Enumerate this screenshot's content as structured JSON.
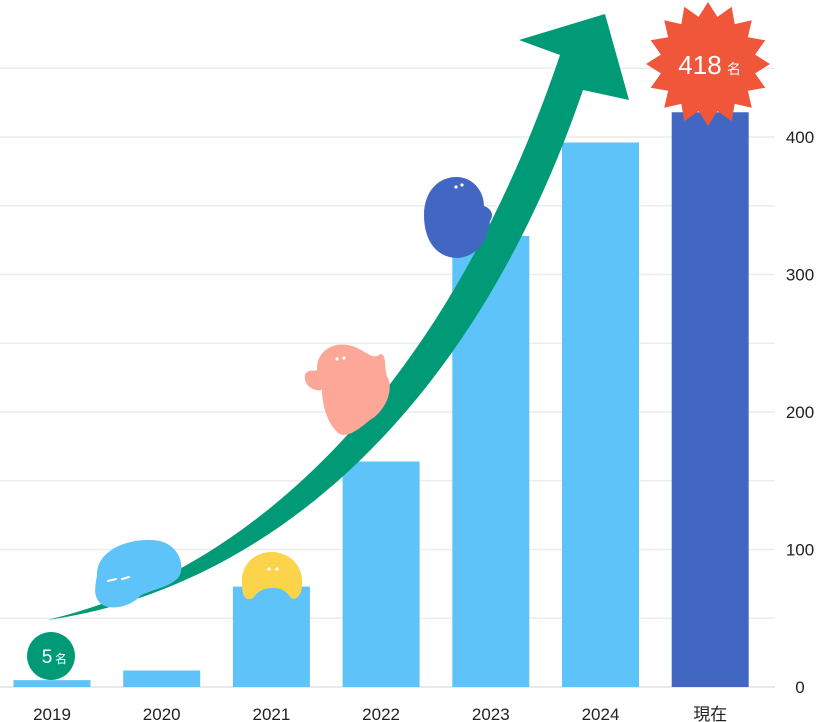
{
  "chart_data": {
    "type": "bar",
    "categories": [
      "2019",
      "2020",
      "2021",
      "2022",
      "2023",
      "2024",
      "現在"
    ],
    "values": [
      5,
      12,
      73,
      164,
      328,
      396,
      418
    ],
    "ylim": [
      0,
      500
    ],
    "yticks": [
      0,
      100,
      200,
      300,
      400
    ],
    "grid": true,
    "y_axis_side": "right",
    "highlight_index": 6,
    "annotations": [
      {
        "category": "2019",
        "number": "5",
        "unit": "名",
        "shape": "circle"
      },
      {
        "category": "現在",
        "number": "418",
        "unit": "名",
        "shape": "starburst"
      }
    ],
    "trend_arrow": true
  },
  "colors": {
    "bar": "#5ec3f8",
    "bar_highlight": "#4267c2",
    "arrow": "#009b76",
    "grid": "#ececec",
    "badge_circle": "#009b76",
    "badge_burst": "#f0563a",
    "mascot_blue_light": "#5ec3f8",
    "mascot_yellow": "#fcd44b",
    "mascot_pink": "#fca797",
    "mascot_blue_dark": "#4267c2"
  },
  "icons": [
    "mascot-light-blue-icon",
    "mascot-yellow-icon",
    "mascot-pink-icon",
    "mascot-dark-blue-icon",
    "trend-arrow-icon",
    "starburst-badge-icon"
  ]
}
